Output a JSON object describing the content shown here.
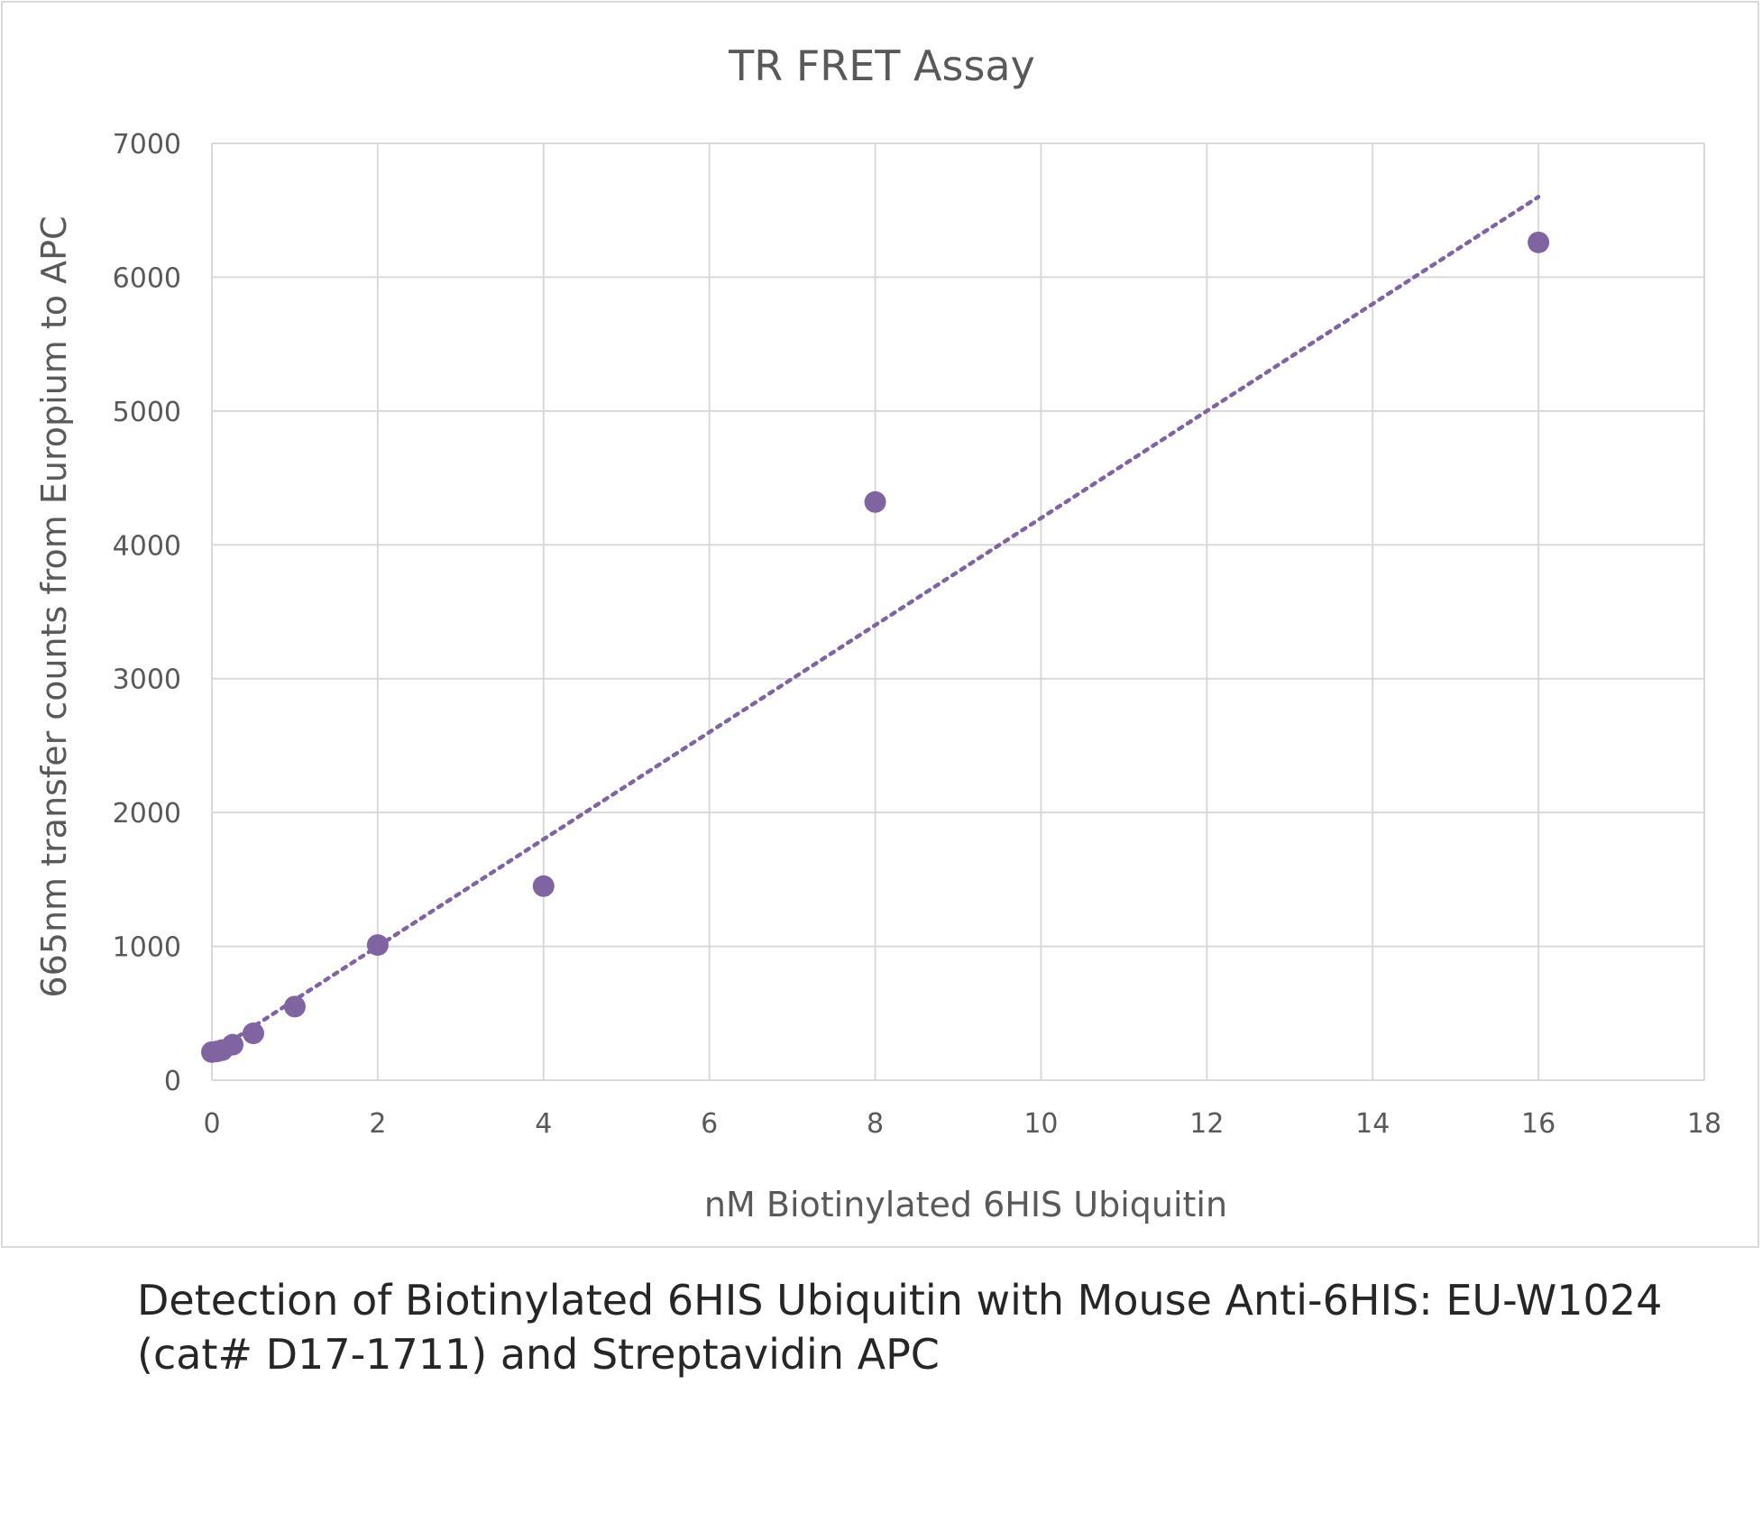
{
  "chart_data": {
    "type": "scatter",
    "title": "TR FRET Assay",
    "xlabel": "nM Biotinylated 6HIS Ubiquitin",
    "ylabel": "665nm transfer counts from Europium to APC",
    "xlim": [
      0,
      18
    ],
    "ylim": [
      0,
      7000
    ],
    "xticks": [
      0,
      2,
      4,
      6,
      8,
      10,
      12,
      14,
      16,
      18
    ],
    "yticks": [
      0,
      1000,
      2000,
      3000,
      4000,
      5000,
      6000,
      7000
    ],
    "grid": true,
    "legend": "none",
    "marker_color": "#8064a2",
    "series": [
      {
        "points": [
          {
            "x": 0,
            "y": 210
          },
          {
            "x": 0.0625,
            "y": 215
          },
          {
            "x": 0.125,
            "y": 225
          },
          {
            "x": 0.25,
            "y": 265
          },
          {
            "x": 0.5,
            "y": 350
          },
          {
            "x": 1,
            "y": 550
          },
          {
            "x": 2,
            "y": 1010
          },
          {
            "x": 4,
            "y": 1450
          },
          {
            "x": 8,
            "y": 4320
          },
          {
            "x": 16,
            "y": 6260
          }
        ]
      }
    ],
    "trendline": {
      "type": "linear",
      "style": "dotted",
      "slope": 400,
      "intercept": 200,
      "x_range": [
        0,
        16
      ]
    }
  },
  "caption": {
    "line1": "Detection of Biotinylated 6HIS Ubiquitin with Mouse Anti-6HIS: EU-W1024",
    "line2": "(cat# D17-1711) and Streptavidin APC"
  }
}
